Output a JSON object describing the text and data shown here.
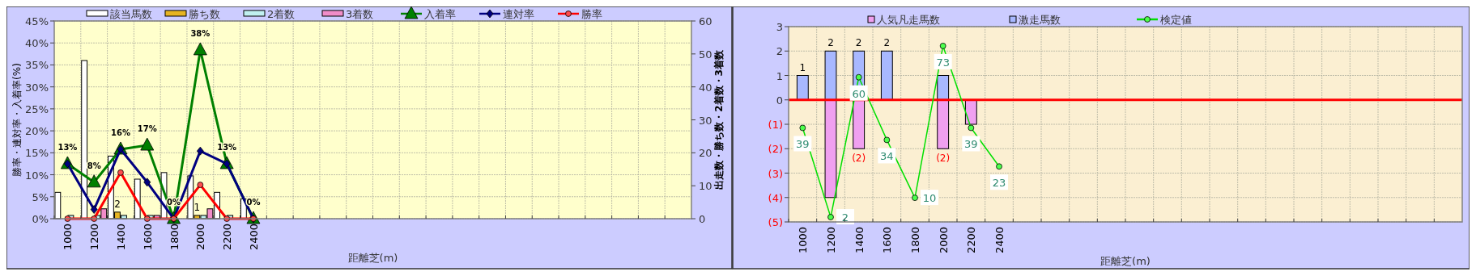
{
  "chart_data": [
    {
      "type": "bar",
      "xlabel": "距離芝(m)",
      "ylabel": "勝率・連対率・入着率(%)",
      "y2label": "出走数・勝ち数・2着数・3着数",
      "categories": [
        "1000",
        "1200",
        "1400",
        "1600",
        "1800",
        "2000",
        "2200",
        "2400",
        null,
        null,
        null,
        null,
        null,
        null,
        null,
        null,
        null,
        null,
        null,
        null,
        null,
        null,
        null,
        null
      ],
      "ylim": [
        0,
        45
      ],
      "yticks": [
        {
          "value": 0,
          "label": "0%"
        },
        {
          "value": 5,
          "label": "5%"
        },
        {
          "value": 10,
          "label": "10%"
        },
        {
          "value": 15,
          "label": "15%"
        },
        {
          "value": 20,
          "label": "20%"
        },
        {
          "value": 25,
          "label": "25%"
        },
        {
          "value": 30,
          "label": "30%"
        },
        {
          "value": 35,
          "label": "35%"
        },
        {
          "value": 40,
          "label": "40%"
        },
        {
          "value": 45,
          "label": "45%"
        }
      ],
      "y2lim": [
        0,
        60
      ],
      "y2ticks": [
        0,
        10,
        20,
        30,
        40,
        50,
        60
      ],
      "grid": true,
      "legend": "top",
      "series": [
        {
          "name": "該当馬数",
          "axis": "y2",
          "color": "#ffffff",
          "values": [
            8,
            48,
            19,
            12,
            14,
            13,
            8,
            6,
            null,
            null,
            null,
            null,
            null,
            null,
            null,
            null,
            null,
            null,
            null,
            null,
            null,
            null,
            null,
            null
          ]
        },
        {
          "name": "勝ち数",
          "axis": "y2",
          "color": "#e6b422",
          "values": [
            0,
            0,
            2,
            0,
            0,
            1,
            0,
            0,
            null,
            null,
            null,
            null,
            null,
            null,
            null,
            null,
            null,
            null,
            null,
            null,
            null,
            null,
            null,
            null
          ],
          "value_labels": [
            null,
            null,
            "2",
            null,
            null,
            "1",
            null,
            null,
            null,
            null,
            null,
            null,
            null,
            null,
            null,
            null,
            null,
            null,
            null,
            null,
            null,
            null,
            null,
            null
          ]
        },
        {
          "name": "2着数",
          "axis": "y2",
          "color": "#c0f0f0",
          "values": [
            1,
            1,
            1,
            1,
            0,
            1,
            1,
            0,
            null,
            null,
            null,
            null,
            null,
            null,
            null,
            null,
            null,
            null,
            null,
            null,
            null,
            null,
            null,
            null
          ]
        },
        {
          "name": "3着数",
          "axis": "y2",
          "color": "#f08cc8",
          "values": [
            0,
            3,
            0,
            1,
            0,
            3,
            0,
            0,
            null,
            null,
            null,
            null,
            null,
            null,
            null,
            null,
            null,
            null,
            null,
            null,
            null,
            null,
            null,
            null
          ]
        },
        {
          "name": "入着率",
          "type": "line",
          "marker": "triangle",
          "color": "#008000",
          "values": [
            12.5,
            8.3,
            15.8,
            16.7,
            0,
            38.4,
            12.5,
            0,
            null,
            null,
            null,
            null,
            null,
            null,
            null,
            null,
            null,
            null,
            null,
            null,
            null,
            null,
            null,
            null
          ],
          "value_labels": [
            "13%",
            "8%",
            "16%",
            "17%",
            "0%",
            "38%",
            "13%",
            "0%",
            null,
            null,
            null,
            null,
            null,
            null,
            null,
            null,
            null,
            null,
            null,
            null,
            null,
            null,
            null,
            null
          ]
        },
        {
          "name": "連対率",
          "type": "line",
          "marker": "diamond",
          "color": "#000080",
          "values": [
            12.5,
            2.1,
            15.8,
            8.3,
            0,
            15.4,
            12.5,
            0,
            null,
            null,
            null,
            null,
            null,
            null,
            null,
            null,
            null,
            null,
            null,
            null,
            null,
            null,
            null,
            null
          ]
        },
        {
          "name": "勝率",
          "type": "line",
          "marker": "circle",
          "color": "#ff0000",
          "values": [
            0,
            0,
            10.5,
            0,
            0,
            7.7,
            0,
            0,
            null,
            null,
            null,
            null,
            null,
            null,
            null,
            null,
            null,
            null,
            null,
            null,
            null,
            null,
            null,
            null
          ]
        }
      ]
    },
    {
      "type": "bar",
      "xlabel": "距離芝(m)",
      "stacked": true,
      "categories": [
        "1000",
        "1200",
        "1400",
        "1600",
        "1800",
        "2000",
        "2200",
        "2400",
        null,
        null,
        null,
        null,
        null,
        null,
        null,
        null,
        null,
        null,
        null,
        null,
        null,
        null,
        null,
        null
      ],
      "ylim": [
        -5,
        3
      ],
      "yticks": [
        {
          "value": -5,
          "label": "(5)"
        },
        {
          "value": -4,
          "label": "(4)"
        },
        {
          "value": -3,
          "label": "(3)"
        },
        {
          "value": -2,
          "label": "(2)"
        },
        {
          "value": -1,
          "label": "(1)"
        },
        0,
        1,
        2,
        3
      ],
      "y2lim": [
        0,
        81
      ],
      "grid": true,
      "legend": "top",
      "ref_lines": [
        {
          "axis": "y",
          "value": 0,
          "color": "#ff0000"
        }
      ],
      "series": [
        {
          "name": "人気凡走馬数",
          "color": "#f0a0f0",
          "values": [
            0,
            -4,
            -2,
            0,
            0,
            -2,
            -1,
            0,
            null,
            null,
            null,
            null,
            null,
            null,
            null,
            null,
            null,
            null,
            null,
            null,
            null,
            null,
            null,
            null
          ],
          "value_labels": [
            null,
            null,
            "(2)",
            null,
            null,
            "(2)",
            null,
            null,
            null,
            null,
            null,
            null,
            null,
            null,
            null,
            null,
            null,
            null,
            null,
            null,
            null,
            null,
            null,
            null
          ]
        },
        {
          "name": "激走馬数",
          "color": "#a8b8ff",
          "values": [
            1,
            2,
            2,
            2,
            0,
            1,
            0,
            0,
            null,
            null,
            null,
            null,
            null,
            null,
            null,
            null,
            null,
            null,
            null,
            null,
            null,
            null,
            null,
            null
          ],
          "value_labels": [
            "1",
            "2",
            "2",
            "2",
            null,
            null,
            null,
            null,
            null,
            null,
            null,
            null,
            null,
            null,
            null,
            null,
            null,
            null,
            null,
            null,
            null,
            null,
            null,
            null
          ]
        },
        {
          "name": "検定値",
          "type": "line",
          "axis": "y2",
          "marker": "circle",
          "color": "#00e000",
          "values": [
            39,
            2,
            60,
            34,
            10,
            73,
            39,
            23,
            null,
            null,
            null,
            null,
            null,
            null,
            null,
            null,
            null,
            null,
            null,
            null,
            null,
            null,
            null,
            null
          ],
          "value_labels": [
            "39",
            "2",
            "60",
            "34",
            "10",
            "73",
            "39",
            "23",
            null,
            null,
            null,
            null,
            null,
            null,
            null,
            null,
            null,
            null,
            null,
            null,
            null,
            null,
            null,
            null
          ]
        }
      ]
    }
  ]
}
